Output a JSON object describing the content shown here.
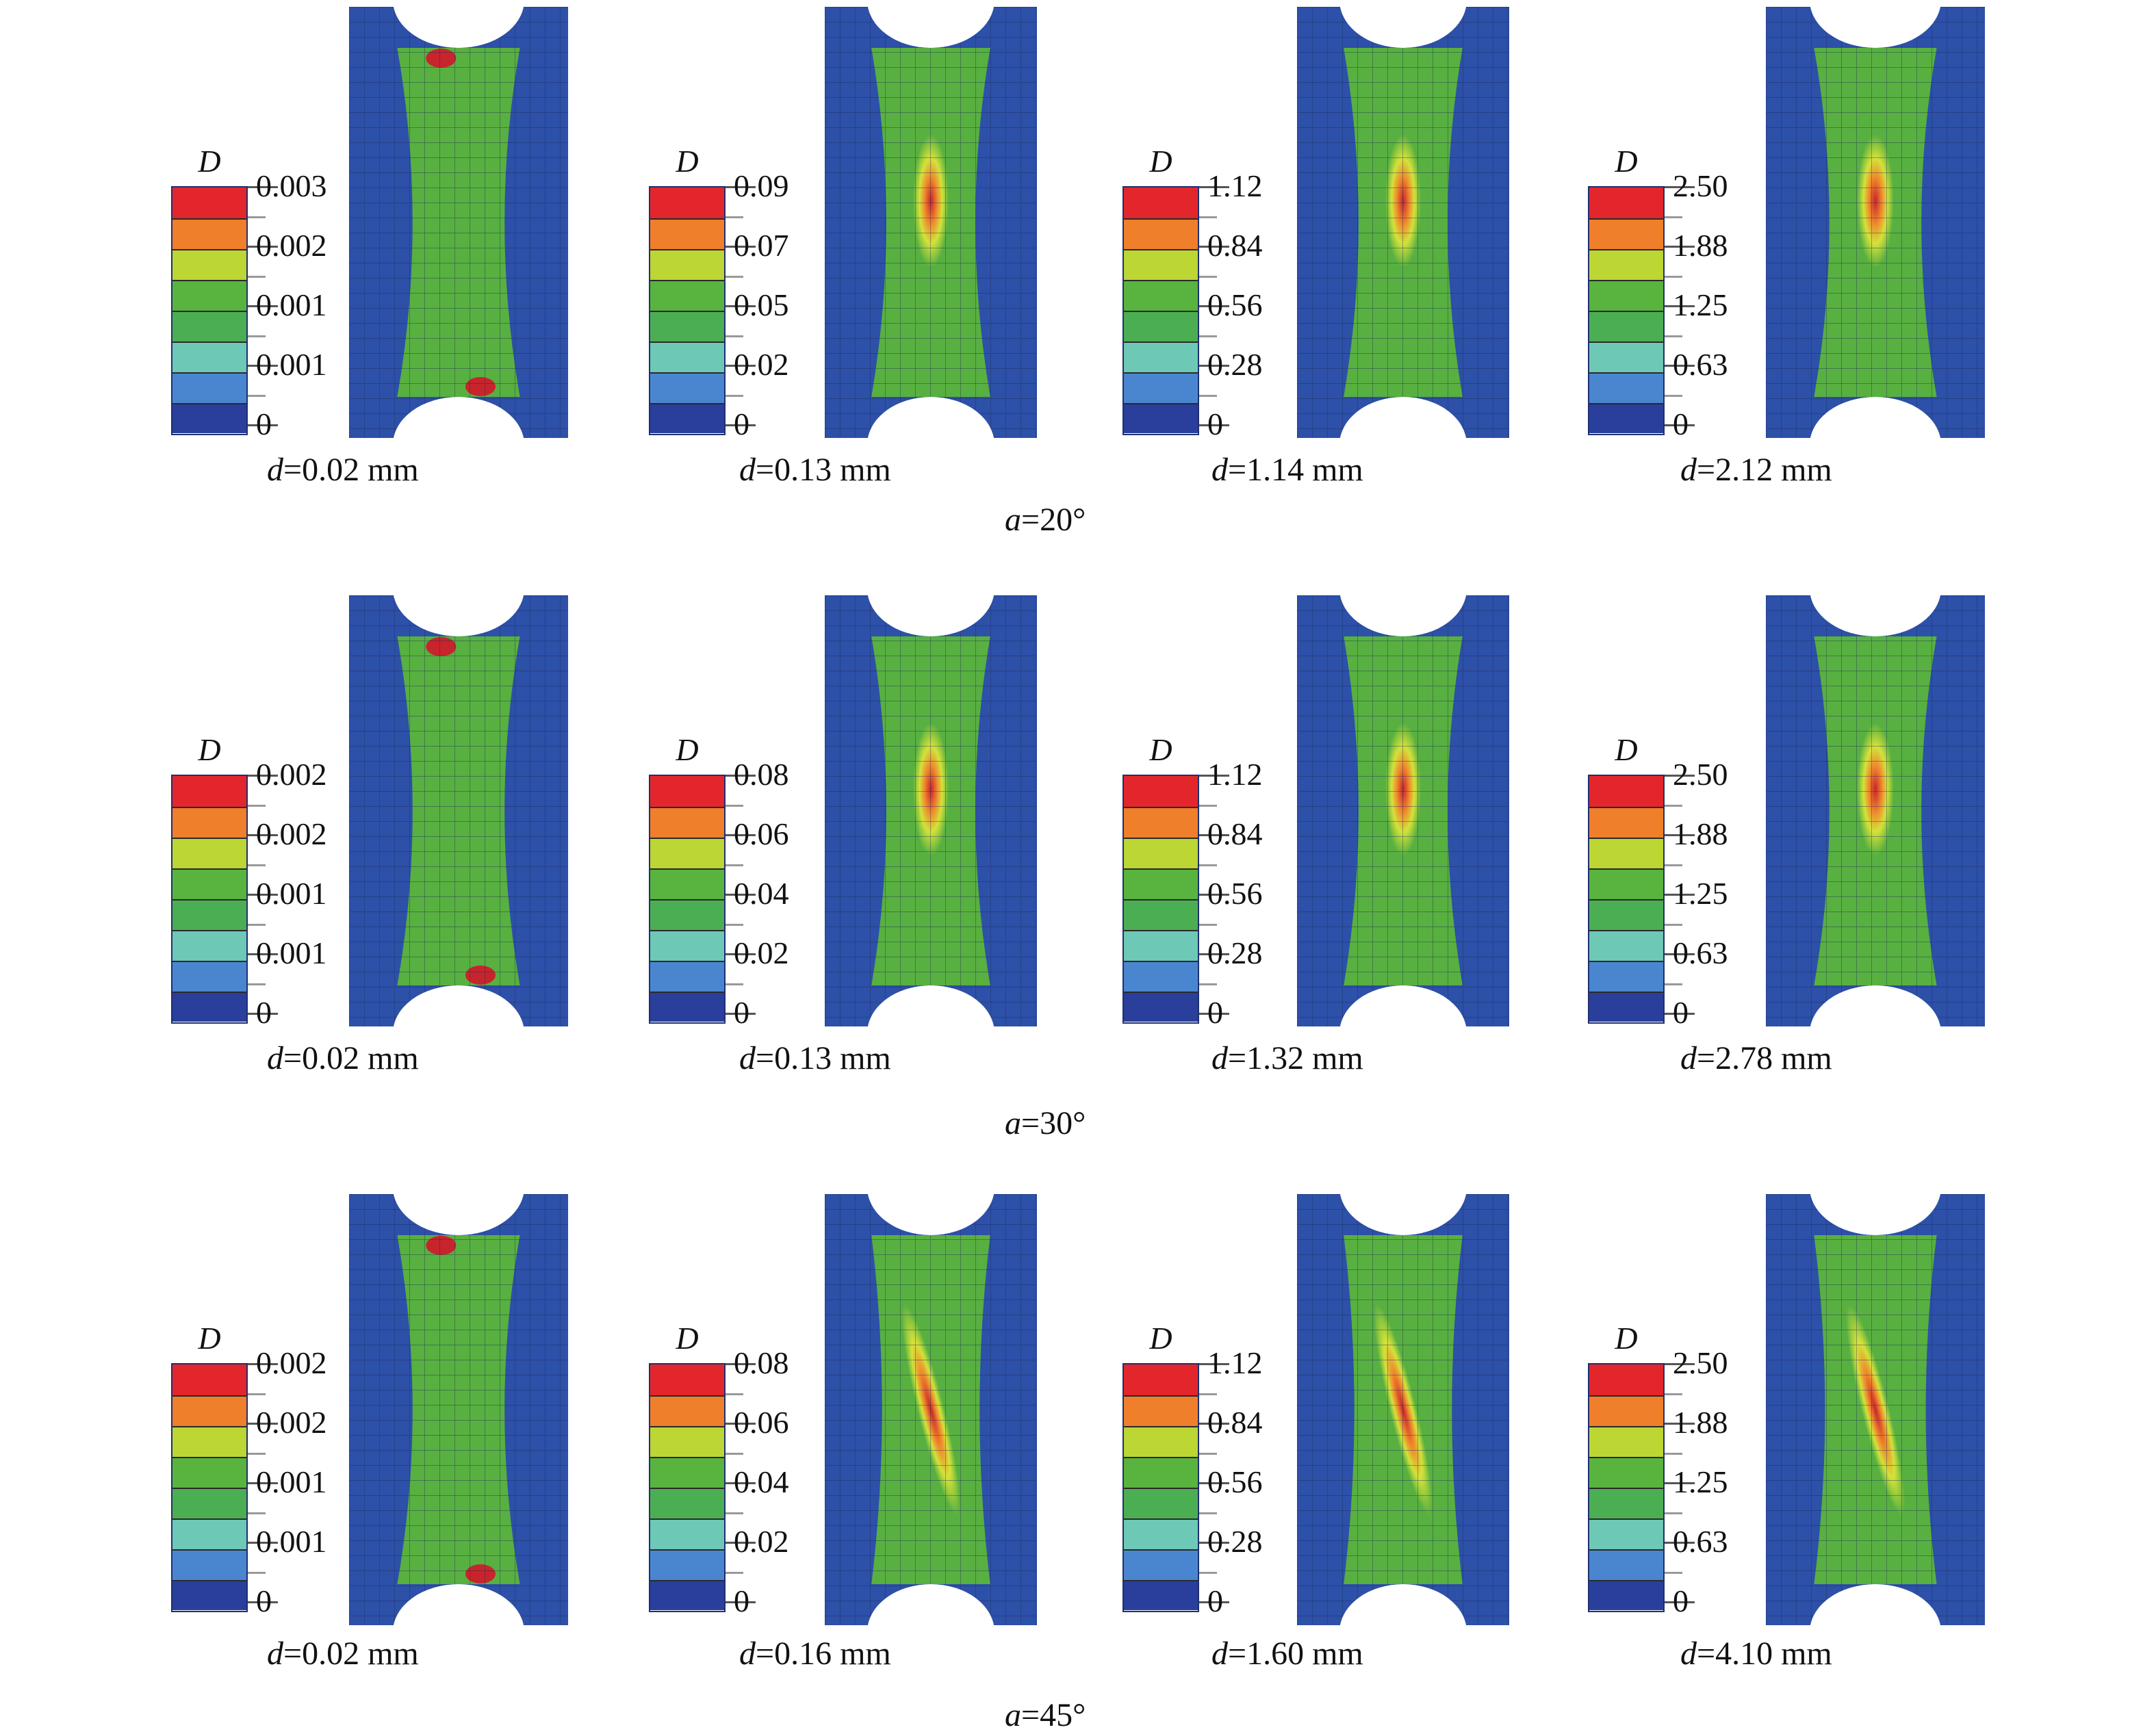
{
  "legend_symbol": "D",
  "band_colors": [
    "#e3262b",
    "#ef7f2a",
    "#bcd633",
    "#58b43f",
    "#4cae52",
    "#6dc8b6",
    "#4a86cf",
    "#2a3f9b"
  ],
  "field_colors": {
    "background": "#2d50a8",
    "mesh_line": "#1a2a5a",
    "green": "#58b040",
    "cyan": "#7fd0c2",
    "yellow": "#d4e23a",
    "orange": "#f08a2c",
    "red": "#c8242c"
  },
  "rows": [
    {
      "angle_label": {
        "prefix": "a",
        "text": "=20°"
      },
      "panels": [
        {
          "ticks": [
            "0.003",
            "0.002",
            "0.001",
            "0.001",
            "0"
          ],
          "caption": {
            "prefix": "d",
            "text": "=0.02 mm"
          },
          "hot": "ends"
        },
        {
          "ticks": [
            "0.09",
            "0.07",
            "0.05",
            "0.02",
            "0"
          ],
          "caption": {
            "prefix": "d",
            "text": "=0.13 mm"
          },
          "hot": "center"
        },
        {
          "ticks": [
            "1.12",
            "0.84",
            "0.56",
            "0.28",
            "0"
          ],
          "caption": {
            "prefix": "d",
            "text": "=1.14 mm"
          },
          "hot": "center"
        },
        {
          "ticks": [
            "2.50",
            "1.88",
            "1.25",
            "0.63",
            "0"
          ],
          "caption": {
            "prefix": "d",
            "text": "=2.12 mm"
          },
          "hot": "center"
        }
      ]
    },
    {
      "angle_label": {
        "prefix": "a",
        "text": "=30°"
      },
      "panels": [
        {
          "ticks": [
            "0.002",
            "0.002",
            "0.001",
            "0.001",
            "0"
          ],
          "caption": {
            "prefix": "d",
            "text": "=0.02 mm"
          },
          "hot": "ends"
        },
        {
          "ticks": [
            "0.08",
            "0.06",
            "0.04",
            "0.02",
            "0"
          ],
          "caption": {
            "prefix": "d",
            "text": "=0.13 mm"
          },
          "hot": "center"
        },
        {
          "ticks": [
            "1.12",
            "0.84",
            "0.56",
            "0.28",
            "0"
          ],
          "caption": {
            "prefix": "d",
            "text": "=1.32 mm"
          },
          "hot": "center"
        },
        {
          "ticks": [
            "2.50",
            "1.88",
            "1.25",
            "0.63",
            "0"
          ],
          "caption": {
            "prefix": "d",
            "text": "=2.78 mm"
          },
          "hot": "center"
        }
      ]
    },
    {
      "angle_label": {
        "prefix": "a",
        "text": "=45°"
      },
      "panels": [
        {
          "ticks": [
            "0.002",
            "0.002",
            "0.001",
            "0.001",
            "0"
          ],
          "caption": {
            "prefix": "d",
            "text": "=0.02 mm"
          },
          "hot": "ends"
        },
        {
          "ticks": [
            "0.08",
            "0.06",
            "0.04",
            "0.02",
            "0"
          ],
          "caption": {
            "prefix": "d",
            "text": "=0.16 mm"
          },
          "hot": "diagonal"
        },
        {
          "ticks": [
            "1.12",
            "0.84",
            "0.56",
            "0.28",
            "0"
          ],
          "caption": {
            "prefix": "d",
            "text": "=1.60 mm"
          },
          "hot": "diagonal"
        },
        {
          "ticks": [
            "2.50",
            "1.88",
            "1.25",
            "0.63",
            "0"
          ],
          "caption": {
            "prefix": "d",
            "text": "=4.10 mm"
          },
          "hot": "diagonal"
        }
      ]
    }
  ]
}
